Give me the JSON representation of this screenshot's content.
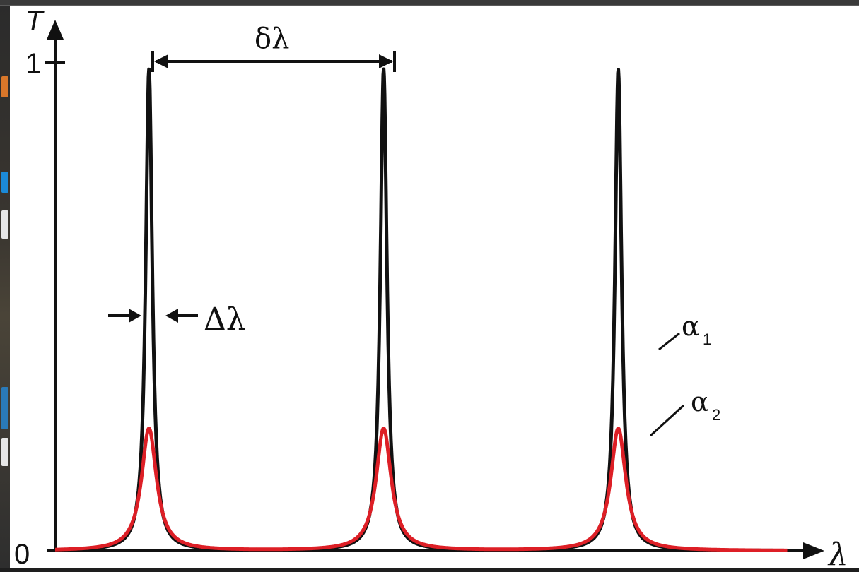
{
  "chart_data": {
    "type": "line",
    "ylabel": "T",
    "xlabel": "λ",
    "y_ticks": [
      {
        "value": 0,
        "label": "0"
      },
      {
        "value": 1,
        "label": "1"
      }
    ],
    "ylim": [
      0,
      1.04
    ],
    "xlim": [
      0,
      3.2
    ],
    "peak_centers": [
      0.4,
      1.4,
      2.4
    ],
    "series": [
      {
        "name": "α1",
        "color": "#111111",
        "peak_T": 0.985,
        "fwhm": 0.034
      },
      {
        "name": "α2",
        "color": "#dd1f26",
        "peak_T": 0.25,
        "fwhm": 0.078
      }
    ],
    "annotations": {
      "period_label": "δλ",
      "width_label": "Δλ",
      "alpha1_symbol": "α",
      "alpha1_sub": "1",
      "alpha2_symbol": "α",
      "alpha2_sub": "2"
    }
  }
}
